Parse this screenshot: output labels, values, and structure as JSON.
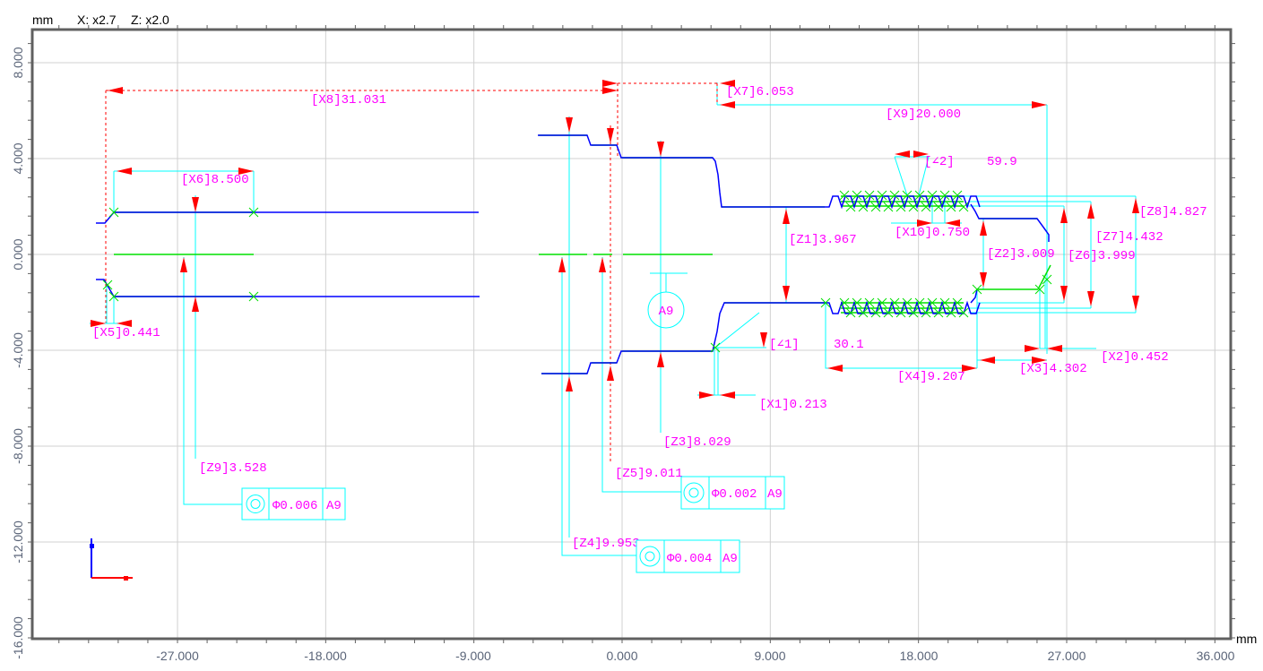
{
  "header": {
    "unit": "mm",
    "x_scale": "X: x2.7",
    "z_scale": "Z: x2.0"
  },
  "axes": {
    "x_unit": "mm",
    "x_ticks": [
      "-27.000",
      "-18.000",
      "-9.000",
      "0.000",
      "9.000",
      "18.000",
      "27.000",
      "36.000"
    ],
    "y_ticks": [
      "8.000",
      "4.000",
      "0.000",
      "-4.000",
      "-8.000",
      "-12.000",
      "-16.000"
    ],
    "grid": true
  },
  "dimensions": {
    "x1": "[X1]0.213",
    "x2": "[X2]0.452",
    "x3": "[X3]4.302",
    "x4": "[X4]9.207",
    "x5": "[X5]0.441",
    "x6": "[X6]8.500",
    "x7": "[X7]6.053",
    "x8": "[X8]31.031",
    "x9": "[X9]20.000",
    "x10": "[X10]0.750",
    "z1": "[Z1]3.967",
    "z2": "[Z2]3.009",
    "z3": "[Z3]8.029",
    "z4": "[Z4]9.953",
    "z5": "[Z5]9.011",
    "z6": "[Z6]3.999",
    "z7": "[Z7]4.432",
    "z8": "[Z8]4.827",
    "z9": "[Z9]3.528",
    "angle1_tag": "[∠1]",
    "angle1_value": "30.1",
    "angle2_tag": "[∠2]",
    "angle2_value": "59.9"
  },
  "datum": {
    "label": "A9"
  },
  "tolerance_frames": [
    {
      "symbol": "concentricity-icon",
      "value": "Φ0.006",
      "datum": "A9"
    },
    {
      "symbol": "concentricity-icon",
      "value": "Φ0.002",
      "datum": "A9"
    },
    {
      "symbol": "concentricity-icon",
      "value": "Φ0.004",
      "datum": "A9"
    }
  ],
  "colors": {
    "profile": "#0000ff",
    "fit": "#00e000",
    "dimension": "#00ffff",
    "arrow": "#ff0000",
    "text": "#ff00ff",
    "grid": "#d0d0d0",
    "axis": "#606060"
  }
}
